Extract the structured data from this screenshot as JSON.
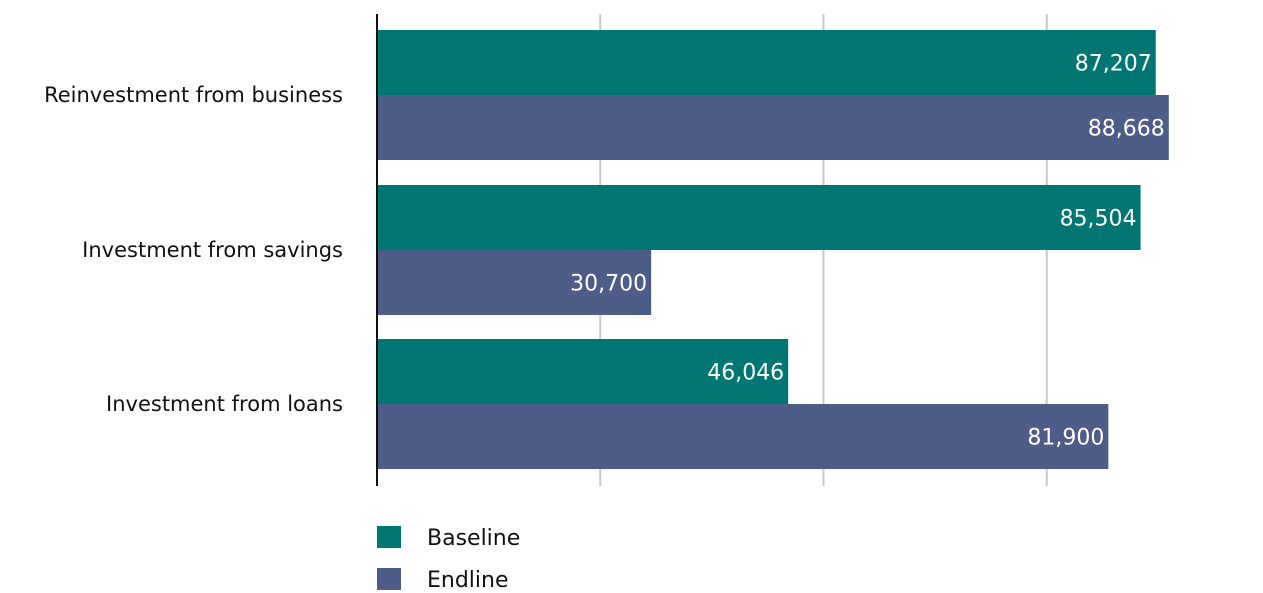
{
  "chart_data": {
    "type": "bar",
    "orientation": "horizontal",
    "categories": [
      "Reinvestment from business",
      "Investment from savings",
      "Investment from loans"
    ],
    "series": [
      {
        "name": "Baseline",
        "values": [
          87207,
          85504,
          46046
        ],
        "labels": [
          "87,207",
          "85,504",
          "46,046"
        ],
        "color": "#007672"
      },
      {
        "name": "Endline",
        "values": [
          88668,
          30700,
          81900
        ],
        "labels": [
          "88,668",
          "30,700",
          "81,900"
        ],
        "color": "#4e5d87"
      }
    ],
    "xlim": [
      0,
      100000
    ],
    "x_ticks": [
      25000,
      50000,
      75000
    ],
    "grid": "vertical",
    "legend": "bottom-left",
    "title": "",
    "xlabel": "",
    "ylabel": ""
  }
}
